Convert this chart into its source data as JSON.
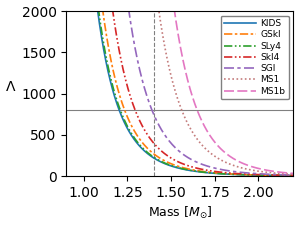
{
  "title": "",
  "xlabel": "Mass [$M_{\\odot}$]",
  "ylabel": "Λ",
  "xlim": [
    0.9,
    2.2
  ],
  "ylim": [
    0,
    2000
  ],
  "hline_y": 800,
  "vline_x": 1.4,
  "line_params": [
    {
      "name": "KIDS",
      "color": "#1f77b4",
      "ls_key": "solid",
      "A": 220,
      "n": 8.5
    },
    {
      "name": "GSkI",
      "color": "#ff7f0e",
      "ls_key": "dashdot2",
      "A": 270,
      "n": 8.6
    },
    {
      "name": "SLy4",
      "color": "#2ca02c",
      "ls_key": "dashdotdot",
      "A": 230,
      "n": 8.5
    },
    {
      "name": "SkI4",
      "color": "#d62728",
      "ls_key": "dashdotdot2",
      "A": 400,
      "n": 8.8
    },
    {
      "name": "SGI",
      "color": "#9467bd",
      "ls_key": "dashdash",
      "A": 750,
      "n": 9.2
    },
    {
      "name": "MS1",
      "color": "#c47c7c",
      "ls_key": "dotted",
      "A": 2500,
      "n": 10.5
    },
    {
      "name": "MS1b",
      "color": "#e377c2",
      "ls_key": "dashed",
      "A": 5000,
      "n": 11.2
    }
  ],
  "figsize": [
    2.99,
    2.27
  ],
  "dpi": 100
}
